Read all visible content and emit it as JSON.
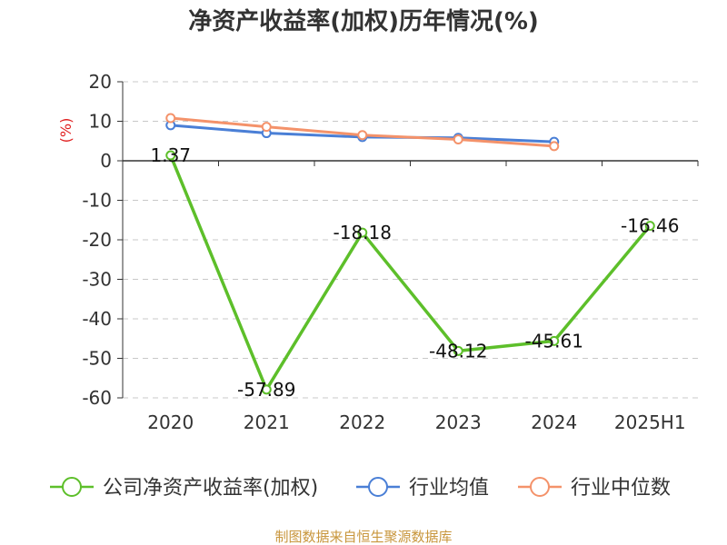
{
  "chart_data": {
    "type": "line",
    "title": "净资产收益率(加权)历年情况(%)",
    "ylabel": "(%)",
    "xlabel": "",
    "categories": [
      "2020",
      "2021",
      "2022",
      "2023",
      "2024",
      "2025H1"
    ],
    "ylim": [
      -60,
      20
    ],
    "yticks": [
      20,
      10,
      0,
      -10,
      -20,
      -30,
      -40,
      -50,
      -60
    ],
    "grid": true,
    "legend_position": "bottom",
    "series": [
      {
        "name": "公司净资产收益率(加权)",
        "color": "#5dbf2a",
        "values": [
          1.37,
          -57.89,
          -18.18,
          -48.12,
          -45.61,
          -16.46
        ],
        "labels": [
          "1.37",
          "-57.89",
          "-18.18",
          "-48.12",
          "-45.61",
          "-16.46"
        ]
      },
      {
        "name": "行业均值",
        "color": "#4a7fd6",
        "values": [
          9.0,
          7.0,
          6.0,
          5.8,
          4.8,
          null
        ]
      },
      {
        "name": "行业中位数",
        "color": "#f4926a",
        "values": [
          10.8,
          8.6,
          6.5,
          5.4,
          3.7,
          null
        ]
      }
    ]
  },
  "source": "制图数据来自恒生聚源数据库"
}
